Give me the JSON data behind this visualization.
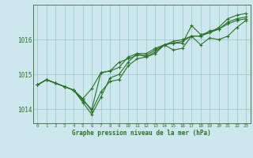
{
  "title": "Graphe pression niveau de la mer (hPa)",
  "background_color": "#cce8ec",
  "grid_color": "#aacccc",
  "line_color": "#2d6e2d",
  "marker_color": "#2d6e2d",
  "xlim": [
    -0.5,
    23.5
  ],
  "ylim": [
    1013.6,
    1017.0
  ],
  "yticks": [
    1014,
    1015,
    1016
  ],
  "xticks": [
    0,
    1,
    2,
    3,
    4,
    5,
    6,
    7,
    8,
    9,
    10,
    11,
    12,
    13,
    14,
    15,
    16,
    17,
    18,
    19,
    20,
    21,
    22,
    23
  ],
  "series": [
    [
      1014.7,
      1014.85,
      1014.75,
      1014.65,
      1014.55,
      1014.3,
      1013.95,
      1014.5,
      1014.8,
      1014.85,
      1015.25,
      1015.45,
      1015.5,
      1015.6,
      1015.85,
      1015.7,
      1015.75,
      1016.1,
      1015.85,
      1016.05,
      1016.0,
      1016.1,
      1016.35,
      1016.55
    ],
    [
      1014.7,
      1014.85,
      1014.75,
      1014.65,
      1014.55,
      1014.3,
      1014.6,
      1015.05,
      1015.1,
      1015.35,
      1015.45,
      1015.55,
      1015.55,
      1015.7,
      1015.85,
      1015.9,
      1015.95,
      1016.1,
      1016.1,
      1016.2,
      1016.3,
      1016.45,
      1016.55,
      1016.6
    ],
    [
      1014.7,
      1014.85,
      1014.75,
      1014.65,
      1014.55,
      1014.2,
      1013.85,
      1014.35,
      1014.9,
      1015.0,
      1015.35,
      1015.6,
      1015.5,
      1015.65,
      1015.85,
      1015.9,
      1015.9,
      1016.4,
      1016.15,
      1016.2,
      1016.35,
      1016.6,
      1016.7,
      1016.75
    ],
    [
      1014.7,
      1014.85,
      1014.75,
      1014.65,
      1014.55,
      1014.25,
      1014.0,
      1015.05,
      1015.1,
      1015.2,
      1015.5,
      1015.6,
      1015.6,
      1015.75,
      1015.85,
      1015.95,
      1016.0,
      1016.1,
      1016.1,
      1016.25,
      1016.3,
      1016.5,
      1016.6,
      1016.65
    ]
  ]
}
